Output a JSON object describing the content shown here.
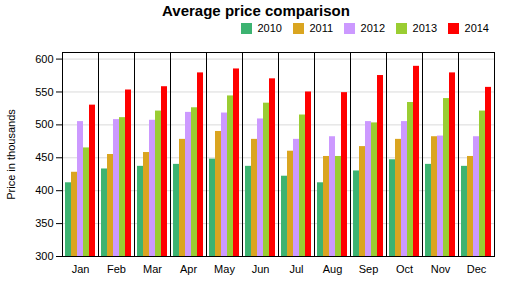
{
  "chart_data": {
    "type": "bar",
    "title": "Average price comparison",
    "ylabel": "Price in thousands",
    "categories": [
      "Jan",
      "Feb",
      "Mar",
      "Apr",
      "May",
      "Jun",
      "Jul",
      "Aug",
      "Sep",
      "Oct",
      "Nov",
      "Dec"
    ],
    "series": [
      {
        "name": "2010",
        "color": "#3CB371",
        "values": [
          412,
          433,
          437,
          440,
          448,
          437,
          422,
          412,
          430,
          447,
          440,
          437
        ]
      },
      {
        "name": "2011",
        "color": "#DAA520",
        "values": [
          428,
          455,
          458,
          478,
          490,
          478,
          460,
          452,
          467,
          478,
          482,
          452
        ]
      },
      {
        "name": "2012",
        "color": "#CC99FF",
        "values": [
          505,
          508,
          507,
          519,
          518,
          509,
          478,
          482,
          505,
          505,
          483,
          482
        ]
      },
      {
        "name": "2013",
        "color": "#9ACD32",
        "values": [
          465,
          511,
          521,
          526,
          544,
          533,
          515,
          452,
          503,
          534,
          540,
          521
        ]
      },
      {
        "name": "2014",
        "color": "#FF0000",
        "values": [
          530,
          553,
          558,
          579,
          585,
          570,
          550,
          549,
          575,
          589,
          579,
          557
        ]
      }
    ],
    "ylim": [
      300,
      610
    ],
    "yticks": [
      300,
      350,
      400,
      450,
      500,
      550,
      600
    ],
    "grid": true,
    "legend": "upper right"
  }
}
